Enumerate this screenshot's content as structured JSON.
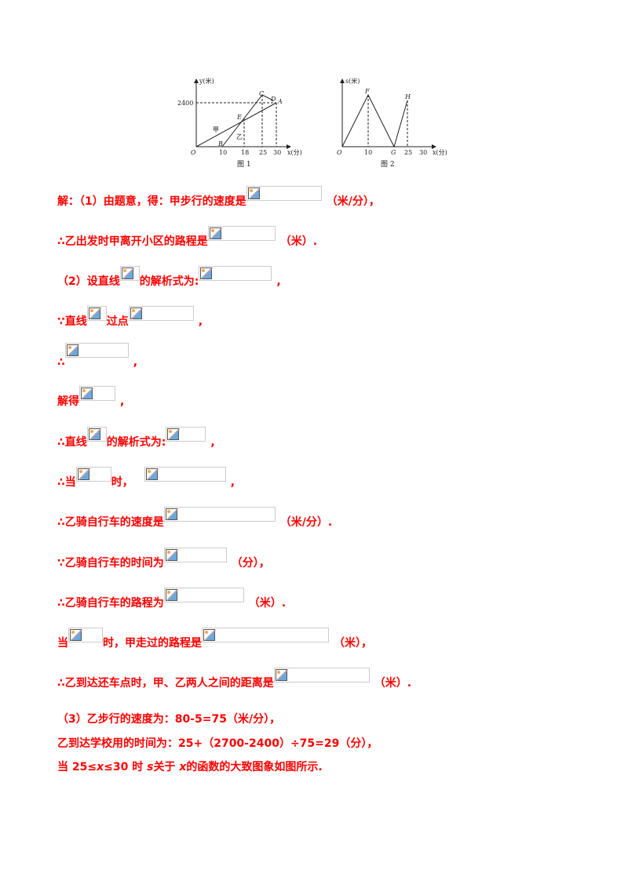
{
  "figures": {
    "fig1": {
      "caption": "图 1",
      "y_axis": "y(米)",
      "x_axis": "x(分)",
      "origin": "O",
      "y_tick": "2400",
      "x_ticks": [
        "10",
        "18",
        "25",
        "30"
      ],
      "points": [
        "C",
        "D",
        "A",
        "E",
        "B"
      ],
      "line_labels": [
        "甲",
        "乙"
      ]
    },
    "fig2": {
      "caption": "图 2",
      "y_axis": "s(米)",
      "x_axis": "x(分)",
      "origin": "O",
      "x_ticks": [
        "10",
        "G",
        "25",
        "30"
      ],
      "points": [
        "F",
        "H"
      ]
    }
  },
  "lines": [
    [
      "解：（1）由题意，得：甲步行的速度是",
      "（米/分），"
    ],
    [
      "∴乙出发时甲离开小区的路程是",
      "（米）."
    ],
    [
      "（2）设直线",
      "的解析式为:",
      ","
    ],
    [
      "∵直线",
      "过点",
      ","
    ],
    [
      "∴",
      ","
    ],
    [
      "解得",
      ","
    ],
    [
      "∴直线",
      "的解析式为:",
      ","
    ],
    [
      "∴当",
      "时，",
      ","
    ],
    [
      "∴乙骑自行车的速度是",
      "（米/分）."
    ],
    [
      "∵乙骑自行车的时间为",
      "（分），"
    ],
    [
      "∴乙骑自行车的路程为",
      "（米）."
    ],
    [
      "当",
      "时，甲走过的路程是",
      "（米），"
    ],
    [
      "∴乙到达还车点时，甲、乙两人之间的距离是",
      "（米）."
    ]
  ],
  "part3": {
    "l1": "（3）乙步行的速度为：80-5=75（米/分），",
    "l2": "乙到达学校用的时间为：25+（2700-2400）÷75=29（分），",
    "l3a": "当 25≤",
    "l3x": "x",
    "l3b": "≤30 时 ",
    "l3s": "s",
    "l3c": "关于 ",
    "l3x2": "x",
    "l3d": "的函数的大致图象如图所示."
  },
  "colors": {
    "text": "#ff0000",
    "figure": "#222222"
  }
}
